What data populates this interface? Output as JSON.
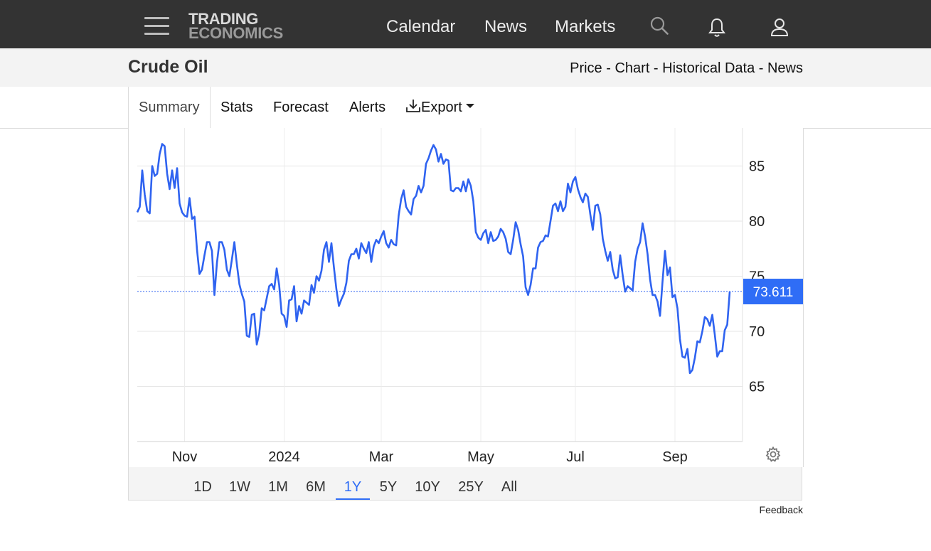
{
  "header": {
    "logo_line1": "TRADING",
    "logo_line2": "ECONOMICS",
    "nav": [
      "Calendar",
      "News",
      "Markets"
    ],
    "icons": [
      "menu-icon",
      "search-icon",
      "bell-icon",
      "user-icon"
    ]
  },
  "page": {
    "title": "Crude Oil",
    "breadcrumb": [
      "Price",
      "Chart",
      "Historical Data",
      "News"
    ],
    "breadcrumb_sep": " - "
  },
  "tabs": {
    "summary": "Summary",
    "stats": "Stats",
    "forecast": "Forecast",
    "alerts": "Alerts",
    "export": "Export"
  },
  "ranges": {
    "items": [
      "1D",
      "1W",
      "1M",
      "6M",
      "1Y",
      "5Y",
      "10Y",
      "25Y",
      "All"
    ],
    "selected": "1Y"
  },
  "feedback": "Feedback",
  "colors": {
    "line": "#2f63f0",
    "accent": "#2f6df6",
    "topbar": "#333333"
  },
  "chart_data": {
    "type": "line",
    "series": [
      {
        "values": [
          80.8,
          81.3,
          84.6,
          82.4,
          80.9,
          80.7,
          85.0,
          84.1,
          84.3,
          86.1,
          87.0,
          86.8,
          84.3,
          82.9,
          84.6,
          83.0,
          84.8,
          81.6,
          80.8,
          80.5,
          80.4,
          82.1,
          80.2,
          80.4,
          77.4,
          75.2,
          75.6,
          76.9,
          78.1,
          78.1,
          77.3,
          73.3,
          76.2,
          78.1,
          78.1,
          77.4,
          75.6,
          75.0,
          76.5,
          78.1,
          76.1,
          74.3,
          73.4,
          72.7,
          69.6,
          69.5,
          71.5,
          71.6,
          68.8,
          69.8,
          72.1,
          71.9,
          73.0,
          74.1,
          74.3,
          73.8,
          75.7,
          74.2,
          71.6,
          71.4,
          70.4,
          72.8,
          72.9,
          74.1,
          70.9,
          72.3,
          71.6,
          72.8,
          72.6,
          72.4,
          74.2,
          73.5,
          75.0,
          74.6,
          75.5,
          77.4,
          78.1,
          76.3,
          78.0,
          75.8,
          73.8,
          72.3,
          72.9,
          73.4,
          74.4,
          76.4,
          77.0,
          77.0,
          77.5,
          76.6,
          78.0,
          77.5,
          77.1,
          78.1,
          76.3,
          77.7,
          78.3,
          78.0,
          78.6,
          79.1,
          78.0,
          77.6,
          78.3,
          77.9,
          77.8,
          80.5,
          82.0,
          82.8,
          81.3,
          80.9,
          80.6,
          82.0,
          82.3,
          83.2,
          82.6,
          83.2,
          85.2,
          85.7,
          86.4,
          86.9,
          86.5,
          85.4,
          86.1,
          85.2,
          85.6,
          85.5,
          82.8,
          82.7,
          83.0,
          83.0,
          82.7,
          83.6,
          82.7,
          83.8,
          83.2,
          81.8,
          79.0,
          78.5,
          78.3,
          78.9,
          79.2,
          78.0,
          79.0,
          78.2,
          78.3,
          78.6,
          79.3,
          79.0,
          78.4,
          77.2,
          77.0,
          78.3,
          79.9,
          79.2,
          77.9,
          76.8,
          74.0,
          73.3,
          74.2,
          75.7,
          75.7,
          77.6,
          78.1,
          78.2,
          78.7,
          78.6,
          80.0,
          81.4,
          81.6,
          80.9,
          81.8,
          80.9,
          81.3,
          83.4,
          82.6,
          83.6,
          84.0,
          82.9,
          82.2,
          81.7,
          82.5,
          82.2,
          80.6,
          79.2,
          81.4,
          81.5,
          80.6,
          78.4,
          77.3,
          76.4,
          77.2,
          75.6,
          74.8,
          74.9,
          76.9,
          75.1,
          73.6,
          74.1,
          73.9,
          73.7,
          76.3,
          77.5,
          78.1,
          79.8,
          78.6,
          77.0,
          74.7,
          73.3,
          73.3,
          72.7,
          71.4,
          74.5,
          77.3,
          75.1,
          75.8,
          73.1,
          73.3,
          72.1,
          69.3,
          67.7,
          67.6,
          68.4,
          66.2,
          66.5,
          67.6,
          69.1,
          69.0,
          70.0,
          71.3,
          71.1,
          70.5,
          71.5,
          69.7,
          67.7,
          68.2,
          68.2,
          70.1,
          70.6,
          73.6
        ]
      }
    ],
    "x_ticks": [
      "Nov",
      "2024",
      "Mar",
      "May",
      "Jul",
      "Sep"
    ],
    "y_ticks": [
      85,
      80,
      75,
      70,
      65
    ],
    "ylim": [
      60,
      88
    ],
    "last_value_label": "73.611",
    "grid": true,
    "price_axis_side": "right"
  }
}
